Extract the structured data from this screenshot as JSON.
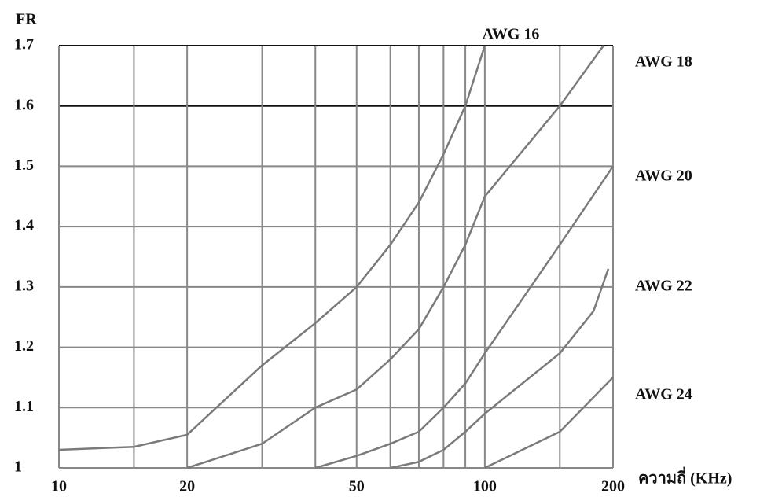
{
  "chart_data": {
    "type": "line",
    "y_label": "FR",
    "x_label": "ความถี่ (KHz)",
    "log_x": true,
    "xlim": [
      10,
      200
    ],
    "ylim": [
      1,
      1.7
    ],
    "xticks": [
      10,
      20,
      50,
      100,
      200
    ],
    "xgrid": [
      10,
      15,
      20,
      30,
      40,
      50,
      60,
      70,
      80,
      90,
      100,
      150,
      200
    ],
    "yticks": [
      1,
      1.1,
      1.2,
      1.3,
      1.4,
      1.5,
      1.6,
      1.7
    ],
    "grid": true,
    "series": [
      {
        "name": "AWG 16",
        "color": "#7a7a7a",
        "x": [
          10,
          15,
          20,
          30,
          40,
          50,
          60,
          70,
          80,
          90,
          100
        ],
        "values": [
          1.03,
          1.035,
          1.055,
          1.17,
          1.24,
          1.3,
          1.37,
          1.44,
          1.52,
          1.6,
          1.7
        ]
      },
      {
        "name": "AWG 18",
        "color": "#7a7a7a",
        "x": [
          20,
          30,
          40,
          50,
          60,
          70,
          80,
          90,
          100,
          150,
          190
        ],
        "values": [
          1.0,
          1.04,
          1.1,
          1.13,
          1.18,
          1.23,
          1.3,
          1.37,
          1.45,
          1.6,
          1.7
        ]
      },
      {
        "name": "AWG 20",
        "color": "#7a7a7a",
        "x": [
          40,
          50,
          60,
          70,
          80,
          90,
          100,
          150,
          200
        ],
        "values": [
          1.0,
          1.02,
          1.04,
          1.06,
          1.1,
          1.14,
          1.19,
          1.37,
          1.5
        ]
      },
      {
        "name": "AWG 22",
        "color": "#7a7a7a",
        "x": [
          60,
          70,
          80,
          90,
          100,
          150,
          180,
          195
        ],
        "values": [
          1.0,
          1.01,
          1.03,
          1.06,
          1.09,
          1.19,
          1.26,
          1.33
        ]
      },
      {
        "name": "AWG 24",
        "color": "#7a7a7a",
        "x": [
          100,
          150,
          200
        ],
        "values": [
          1.0,
          1.06,
          1.15
        ]
      }
    ]
  }
}
